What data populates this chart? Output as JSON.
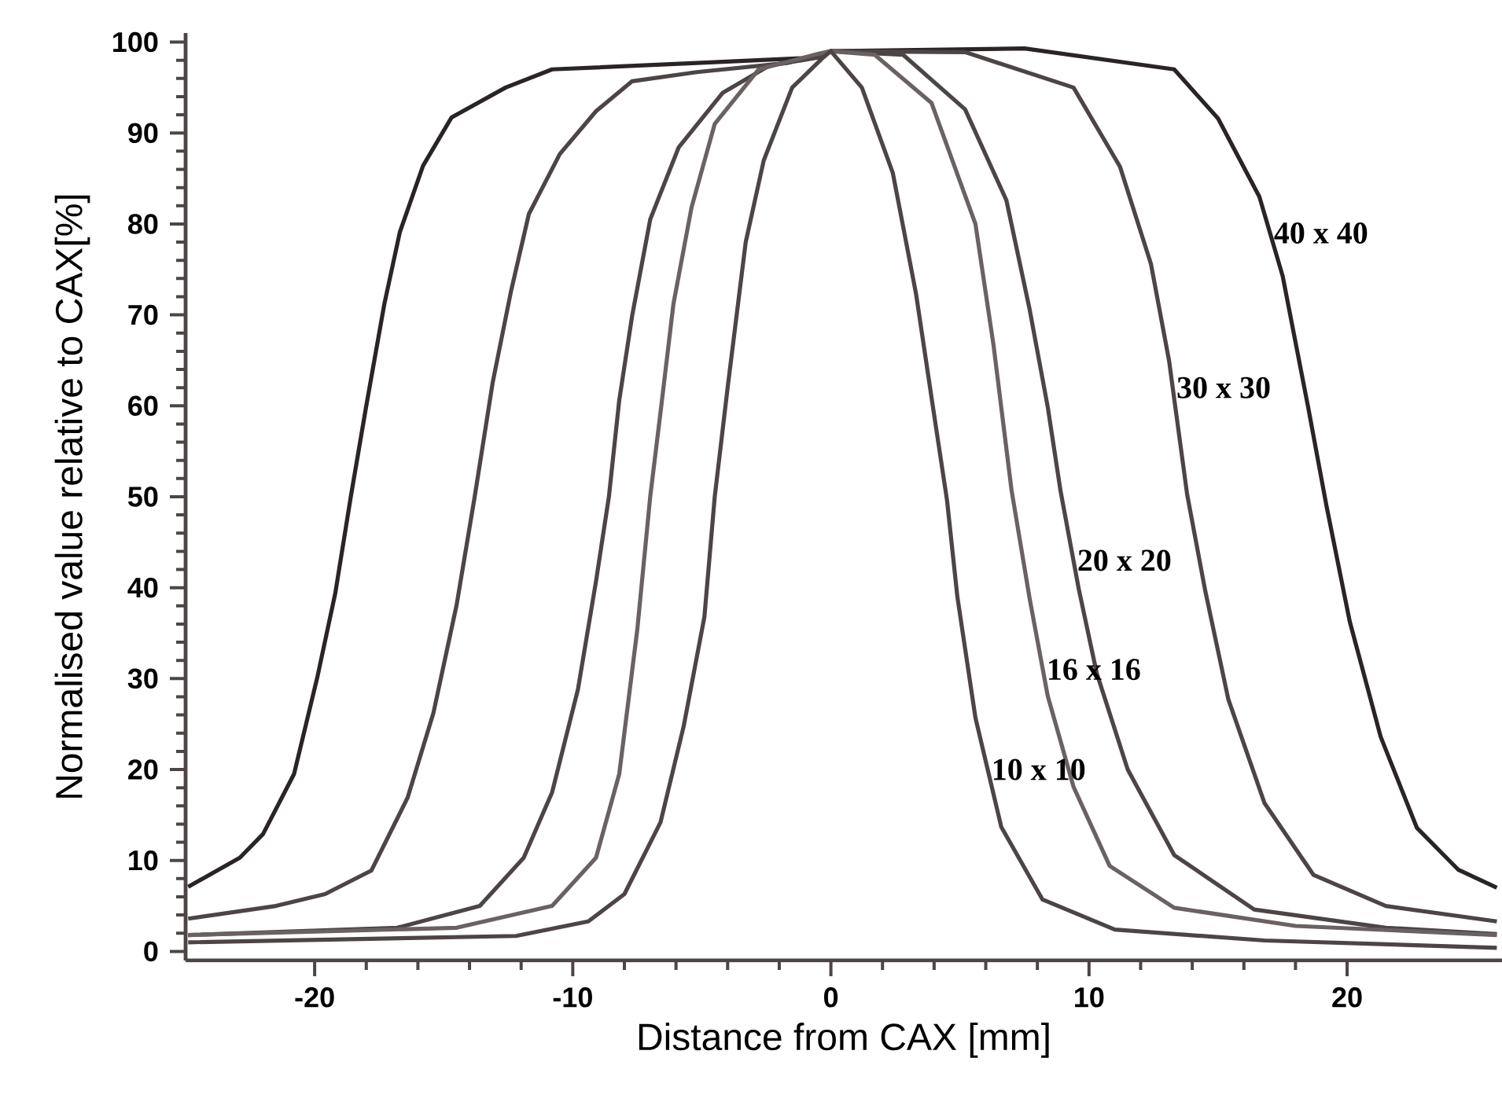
{
  "chart_data": {
    "type": "line",
    "xlabel": "Distance from CAX [mm]",
    "ylabel": "Normalised value relative to CAX[%]",
    "xlim": [
      -25,
      26
    ],
    "ylim": [
      -1,
      101
    ],
    "xticks": [
      -20,
      -10,
      0,
      10,
      20
    ],
    "yticks": [
      0,
      10,
      20,
      30,
      40,
      50,
      60,
      70,
      80,
      90,
      100
    ],
    "grid": false,
    "legend": false,
    "marker": "none",
    "line_style": "solid",
    "series": [
      {
        "name": "40 x 40",
        "color": "#2a2424",
        "x": [
          -24.9,
          -22.9,
          -22.0,
          -20.8,
          -19.9,
          -19.2,
          -18.6,
          -18.0,
          -17.3,
          -16.7,
          -15.8,
          -14.7,
          -12.6,
          -10.8,
          -5.2,
          -0.5,
          0,
          7.5,
          13.3,
          15.0,
          16.6,
          17.5,
          18.5,
          19.2,
          20.1,
          21.3,
          22.7,
          24.3,
          25.8
        ],
        "values": [
          7.1,
          10.3,
          12.9,
          19.5,
          30.1,
          39.4,
          50,
          60,
          71.2,
          79.1,
          86.4,
          91.7,
          95,
          97,
          97.7,
          98.3,
          99,
          99.3,
          97,
          91.6,
          83,
          74.3,
          59.7,
          49,
          36.3,
          23.6,
          13.6,
          9.0,
          7.0
        ]
      },
      {
        "name": "30 x 30",
        "color": "#4d4545",
        "x": [
          -24.9,
          -21.5,
          -19.6,
          -17.8,
          -16.4,
          -15.4,
          -14.5,
          -13.8,
          -13.1,
          -12.4,
          -11.7,
          -10.5,
          -9.1,
          -7.7,
          -5.2,
          -1.7,
          0,
          5.2,
          9.4,
          11.2,
          12.4,
          13.1,
          13.8,
          14.5,
          15.4,
          16.8,
          18.7,
          21.5,
          25.8
        ],
        "values": [
          3.6,
          5.0,
          6.3,
          8.9,
          16.9,
          26.2,
          38.1,
          50,
          62.6,
          72.5,
          81.1,
          87.7,
          92.4,
          95.7,
          96.7,
          97.7,
          99,
          98.9,
          95,
          86.3,
          75.6,
          65,
          50.3,
          39.7,
          27.7,
          16.3,
          8.4,
          5.0,
          3.3
        ]
      },
      {
        "name": "20 x 20",
        "color": "#4d4545",
        "x": [
          -24.9,
          -16.8,
          -13.6,
          -11.9,
          -10.8,
          -9.8,
          -9.1,
          -8.6,
          -8.2,
          -7.7,
          -7.0,
          -5.9,
          -4.2,
          -2.4,
          -0.5,
          0,
          2.8,
          5.2,
          6.8,
          7.7,
          8.4,
          8.9,
          9.6,
          10.3,
          11.5,
          13.3,
          16.4,
          21.5,
          25.8
        ],
        "values": [
          1.8,
          2.6,
          5.0,
          10.3,
          17.5,
          28.8,
          40.7,
          50,
          60.6,
          69.9,
          80.5,
          88.4,
          94.4,
          97.4,
          98.3,
          99,
          98.6,
          92.6,
          82.6,
          70.6,
          59.9,
          50.6,
          39.9,
          30.6,
          20,
          10.6,
          4.6,
          2.6,
          1.9
        ]
      },
      {
        "name": "16 x 16",
        "color": "#6a6262",
        "x": [
          -24.9,
          -14.5,
          -10.8,
          -9.1,
          -8.2,
          -7.5,
          -7.0,
          -6.6,
          -6.1,
          -5.4,
          -4.5,
          -2.8,
          -0.5,
          0,
          1.7,
          3.9,
          5.6,
          6.3,
          7.0,
          7.7,
          8.4,
          9.4,
          10.8,
          13.3,
          18.0,
          25.8
        ],
        "values": [
          1.8,
          2.6,
          5.0,
          10.3,
          19.5,
          35.4,
          50,
          59.3,
          71.2,
          81.8,
          91,
          97,
          98.7,
          99,
          98.6,
          93.3,
          80,
          66.7,
          50.7,
          38.8,
          28.1,
          18.1,
          9.4,
          4.8,
          2.8,
          1.8
        ]
      },
      {
        "name": "10 x 10",
        "color": "#4d4545",
        "x": [
          -24.9,
          -12.2,
          -9.4,
          -8.0,
          -6.6,
          -5.7,
          -4.9,
          -4.5,
          -4.0,
          -3.3,
          -2.6,
          -1.5,
          -0.3,
          0,
          1.2,
          2.4,
          3.3,
          4.0,
          4.5,
          4.9,
          5.6,
          6.6,
          8.2,
          11.0,
          16.8,
          25.8
        ],
        "values": [
          1.0,
          1.7,
          3.3,
          6.3,
          14.2,
          24.8,
          36.8,
          50,
          62,
          78,
          87,
          95,
          98.3,
          99,
          95,
          85.6,
          72.3,
          59,
          49.6,
          39,
          25.7,
          13.7,
          5.7,
          2.4,
          1.2,
          0.4
        ]
      }
    ]
  }
}
